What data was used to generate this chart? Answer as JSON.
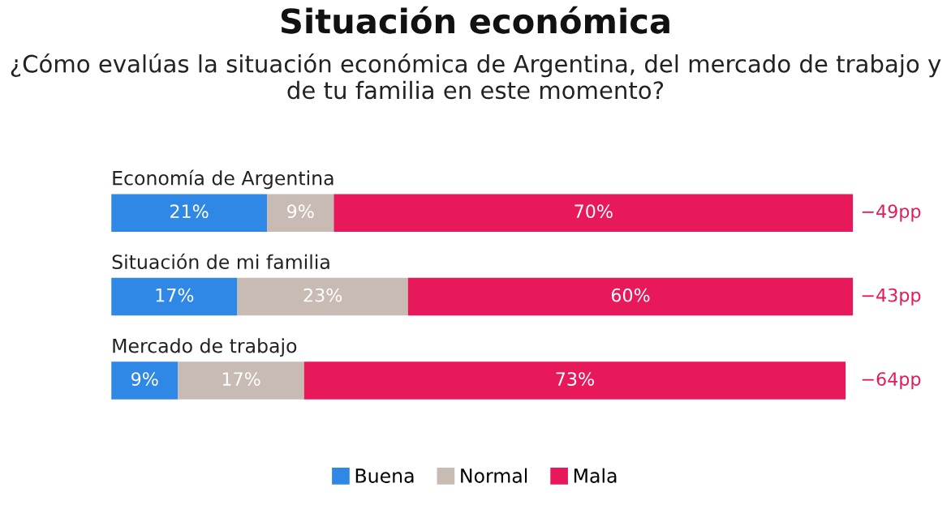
{
  "chart_data": {
    "type": "bar",
    "orientation": "horizontal",
    "stacked": true,
    "title": "Situación económica",
    "subtitle": "¿Cómo evalúas la situación económica de Argentina, del mercado de trabajo y de tu familia en este momento?",
    "categories": [
      "Economía de Argentina",
      "Situación de mi familia",
      "Mercado de trabajo"
    ],
    "series": [
      {
        "name": "Buena",
        "color": "#2f87e6",
        "values": [
          21,
          17,
          9
        ],
        "value_labels": [
          "21%",
          "17%",
          "9%"
        ]
      },
      {
        "name": "Normal",
        "color": "#c8bbb3",
        "values": [
          9,
          23,
          17
        ],
        "value_labels": [
          "9%",
          "23%",
          "17%"
        ]
      },
      {
        "name": "Mala",
        "color": "#e8195b",
        "values": [
          70,
          60,
          73
        ],
        "value_labels": [
          "70%",
          "60%",
          "73%"
        ]
      }
    ],
    "annotations": [
      "−49pp",
      "−43pp",
      "−64pp"
    ],
    "legend": "bottom"
  }
}
